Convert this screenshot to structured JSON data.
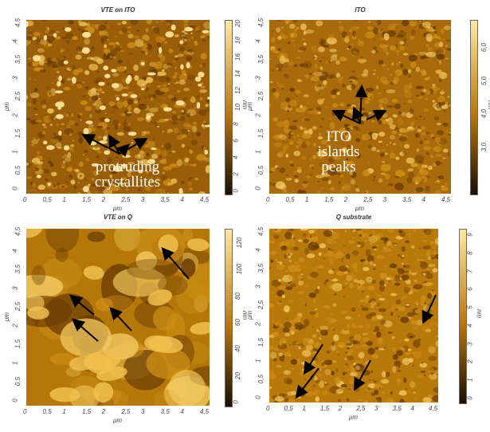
{
  "panels": [
    {
      "title": "VTE on ITO",
      "xlabel": "μm",
      "ylabel": "μm",
      "xticks": [
        "0",
        "0,5",
        "1",
        "1,5",
        "2",
        "2,5",
        "3",
        "3,5",
        "4",
        "4,5"
      ],
      "yticks": [
        "4,5",
        "4",
        "3,5",
        "3",
        "2,5",
        "2",
        "1,5",
        "1",
        "0,5",
        "0"
      ],
      "cbar_ticks": [
        "20",
        "18",
        "16",
        "14",
        "12",
        "10",
        "8",
        "6",
        "4",
        "2",
        "0"
      ],
      "unit": "nm",
      "annotation": [
        "protruding",
        "crystallites"
      ]
    },
    {
      "title": "ITO",
      "xlabel": "μm",
      "ylabel": "μm",
      "xticks": [
        "0",
        "0,5",
        "1",
        "1,5",
        "2",
        "2,5",
        "3",
        "3,5",
        "4",
        "4,5"
      ],
      "yticks": [
        "4,5",
        "4",
        "3,5",
        "3",
        "2,5",
        "2",
        "1,5",
        "1",
        "0,5",
        "0"
      ],
      "cbar_ticks": [
        "6,0",
        "5,0",
        "4,0",
        "3,0"
      ],
      "unit": "nm",
      "annotation": [
        "ITO",
        "islands",
        "peaks"
      ]
    },
    {
      "title": "VTE on Q",
      "xlabel": "μm",
      "ylabel": "μm",
      "xticks": [
        "0",
        "0,5",
        "1",
        "1,5",
        "2",
        "2,5",
        "3",
        "3,5",
        "4",
        "4,5"
      ],
      "yticks": [
        "4,5",
        "4",
        "3,5",
        "3",
        "2,5",
        "2",
        "1,5",
        "1",
        "0,5",
        "0"
      ],
      "cbar_ticks": [
        "120",
        "100",
        "80",
        "60",
        "40",
        "20",
        "0"
      ],
      "unit": "nm",
      "annotation": []
    },
    {
      "title": "Q substrate",
      "xlabel": "μm",
      "ylabel": "μm",
      "xticks": [
        "0",
        "0,5",
        "1",
        "1,5",
        "2",
        "2,5",
        "3",
        "3,5",
        "4",
        "4,5"
      ],
      "yticks": [
        "4,5",
        "4",
        "3,5",
        "3",
        "2,5",
        "2",
        "1,5",
        "1",
        "0,5",
        "0"
      ],
      "cbar_ticks": [
        "9",
        "8",
        "7",
        "6",
        "5",
        "4",
        "3",
        "2",
        "1",
        "0"
      ],
      "unit": "nm",
      "annotation": []
    }
  ],
  "colors": {
    "afm_dark": "#1a0e02",
    "afm_mid": "#b8740a",
    "afm_light": "#ffe8a0",
    "arrow": "#000000",
    "annotation_text": "#ffffff"
  }
}
